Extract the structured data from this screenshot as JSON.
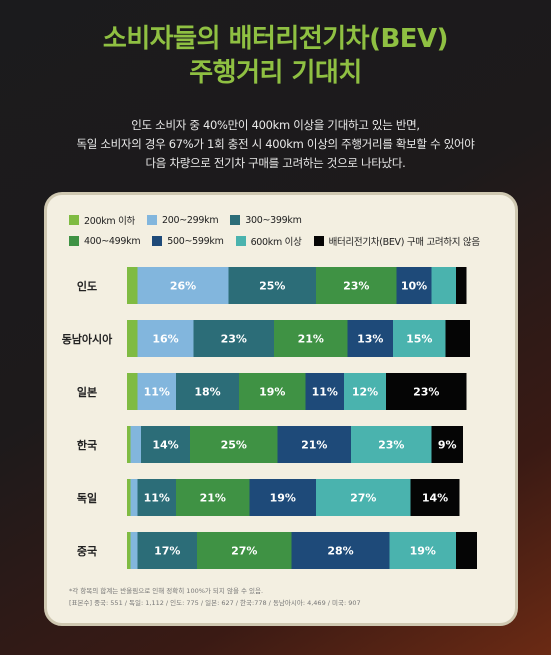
{
  "title": {
    "line1": "소비자들의 배터리전기차(BEV)",
    "line2": "주행거리 기대치"
  },
  "subtitle": {
    "line1": "인도 소비자 중 40%만이 400km 이상을 기대하고 있는 반면,",
    "line2": "독일 소비자의 경우 67%가 1회 충전 시 400km 이상의 주행거리를 확보할 수 있어야",
    "line3": "다음 차량으로 전기차 구매를 고려하는 것으로 나타났다."
  },
  "footnote": {
    "line1": "*각 항목의 합계는 반올림으로 인해 정확히 100%가 되지 않을 수 있음.",
    "line2": "[표본수] 중국: 551 / 독일: 1,112 / 인도: 775 / 일본: 627 / 한국:778 / 동남아시아: 4,469 / 미국: 907"
  },
  "chart_data": {
    "type": "bar",
    "orientation": "horizontal",
    "stacked": true,
    "categories": [
      "인도",
      "동남아시아",
      "일본",
      "한국",
      "독일",
      "중국"
    ],
    "series": [
      {
        "name": "200km 이하",
        "color": "#7fbb42",
        "values": [
          3,
          3,
          3,
          1,
          1,
          1
        ]
      },
      {
        "name": "200~299km",
        "color": "#82b6dd",
        "values": [
          26,
          16,
          11,
          3,
          2,
          2
        ]
      },
      {
        "name": "300~399km",
        "color": "#2c6d78",
        "values": [
          25,
          23,
          18,
          14,
          11,
          17
        ]
      },
      {
        "name": "400~499km",
        "color": "#3f9244",
        "values": [
          23,
          21,
          19,
          25,
          21,
          27
        ]
      },
      {
        "name": "500~599km",
        "color": "#1e4a79",
        "values": [
          10,
          13,
          11,
          21,
          19,
          28
        ]
      },
      {
        "name": "600km 이상",
        "color": "#4ab3ae",
        "values": [
          7,
          15,
          12,
          23,
          27,
          19
        ]
      },
      {
        "name": "배터리전기차(BEV) 구매 고려하지 않음",
        "color": "#050505",
        "values": [
          3,
          7,
          23,
          9,
          14,
          6
        ]
      }
    ],
    "data_labels": [
      [
        "",
        "26%",
        "25%",
        "23%",
        "10%",
        "",
        ""
      ],
      [
        "",
        "16%",
        "23%",
        "21%",
        "13%",
        "15%",
        ""
      ],
      [
        "",
        "11%",
        "18%",
        "19%",
        "11%",
        "12%",
        "23%"
      ],
      [
        "",
        "",
        "14%",
        "25%",
        "21%",
        "23%",
        "9%"
      ],
      [
        "",
        "",
        "11%",
        "21%",
        "19%",
        "27%",
        "14%"
      ],
      [
        "",
        "",
        "17%",
        "27%",
        "28%",
        "19%",
        ""
      ]
    ],
    "xlim": [
      0,
      100
    ],
    "legend_position": "top",
    "grid": false
  }
}
